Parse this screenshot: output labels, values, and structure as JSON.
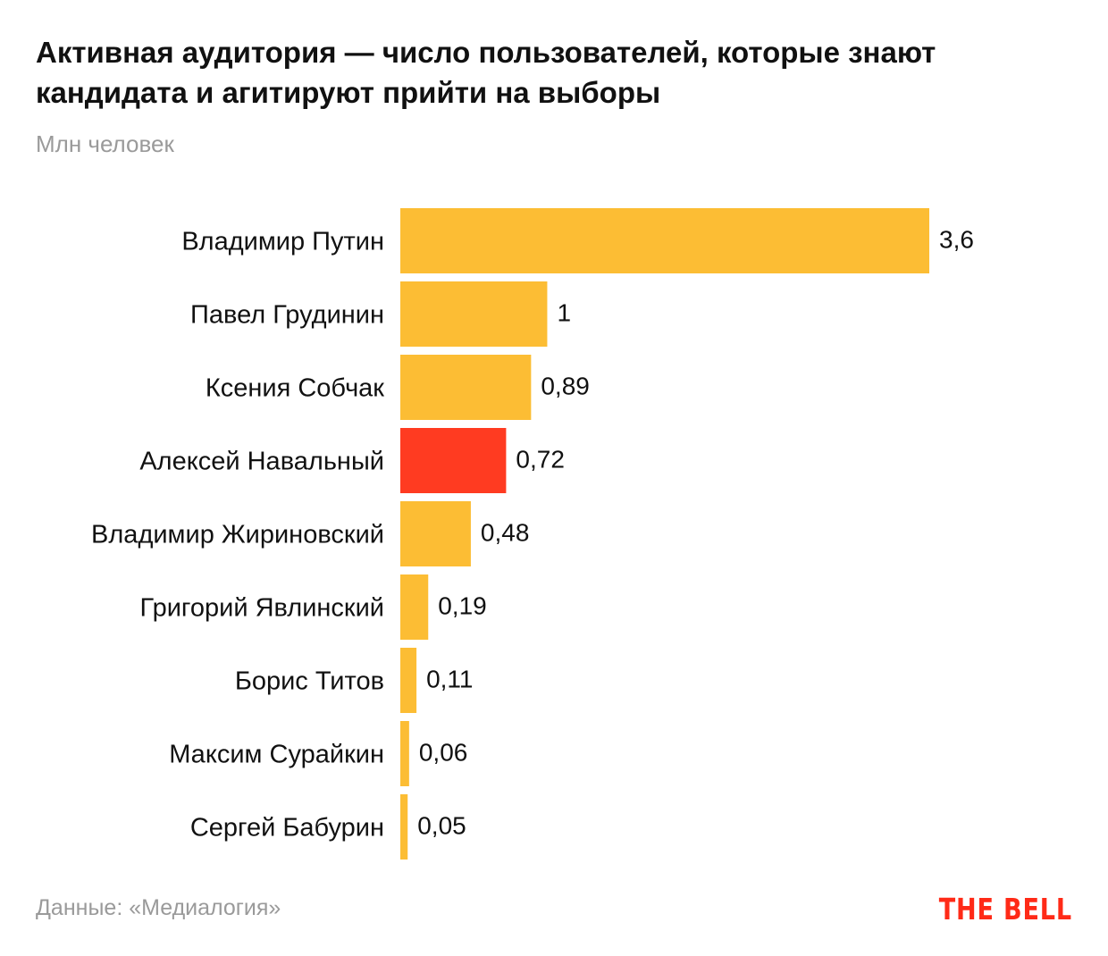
{
  "chart_data": {
    "type": "bar",
    "orientation": "horizontal",
    "title": "Активная аудитория — число пользователей, которые знают кандидата и агитируют прийти на выборы",
    "subtitle": "Млн человек",
    "categories": [
      "Владимир Путин",
      "Павел Грудинин",
      "Ксения Собчак",
      "Алексей Навальный",
      "Владимир Жириновский",
      "Григорий Явлинский",
      "Борис Титов",
      "Максим Сурайкин",
      "Сергей Бабурин"
    ],
    "values": [
      3.6,
      1,
      0.89,
      0.72,
      0.48,
      0.19,
      0.11,
      0.06,
      0.05
    ],
    "value_labels": [
      "3,6",
      "1",
      "0,89",
      "0,72",
      "0,48",
      "0,19",
      "0,11",
      "0,06",
      "0,05"
    ],
    "colors": [
      "#fcbd34",
      "#fcbd34",
      "#fcbd34",
      "#ff3b21",
      "#fcbd34",
      "#fcbd34",
      "#fcbd34",
      "#fcbd34",
      "#fcbd34"
    ],
    "highlight_category": "Алексей Навальный",
    "xlim": [
      0,
      3.6
    ],
    "grid": false,
    "legend": "none"
  },
  "footer": {
    "source": "Данные: «Медиалогия»",
    "logo": "THE BELL"
  },
  "colors": {
    "bar": "#fcbd34",
    "highlight": "#ff3b21",
    "muted_text": "#9a9a9a",
    "brand": "#ff2a17"
  }
}
